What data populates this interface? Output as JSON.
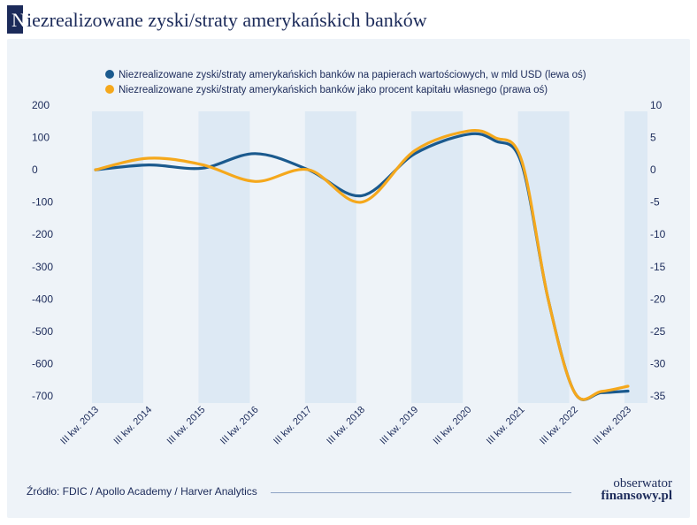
{
  "header": {
    "title_first": "N",
    "title_rest": "iezrealizowane zyski/straty amerykańskich banków"
  },
  "footer": {
    "source": "Źródło: FDIC / Apollo Academy / Harver Analytics",
    "brand_top": "obserwator",
    "brand_bottom": "finansowy.pl"
  },
  "colors": {
    "series_left": "#1b5a8e",
    "series_right": "#f5a81c",
    "band": "#dde9f4",
    "background": "#eef3f8",
    "text": "#1c2b5a"
  },
  "chart_data": {
    "type": "line",
    "title": "Niezrealizowane zyski/straty amerykańskich banków",
    "categories": [
      "III kw. 2013",
      "III kw. 2014",
      "III kw. 2015",
      "III kw. 2016",
      "III kw. 2017",
      "III kw. 2018",
      "III kw. 2019",
      "III kw. 2020",
      "III kw. 2021",
      "III kw. 2022",
      "III kw. 2023"
    ],
    "y_left": {
      "ylim": [
        -700,
        200
      ],
      "ticks": [
        200,
        100,
        0,
        -100,
        -200,
        -300,
        -400,
        -500,
        -600,
        -700
      ]
    },
    "y_right": {
      "ylim": [
        -35,
        10
      ],
      "ticks": [
        10,
        5,
        0,
        -5,
        -10,
        -15,
        -20,
        -25,
        -30,
        -35
      ]
    },
    "series": [
      {
        "name": "Niezrealizowane zyski/straty amerykańskich banków na papierach wartościowych, w mld USD (lewa oś)",
        "axis": "left",
        "color": "#1b5a8e",
        "x": [
          0,
          1,
          2,
          3,
          4,
          5,
          6,
          7,
          7.5,
          8,
          8.5,
          9,
          9.5,
          10
        ],
        "values": [
          0,
          15,
          5,
          50,
          0,
          -80,
          50,
          110,
          90,
          20,
          -400,
          -690,
          -690,
          -685
        ]
      },
      {
        "name": "Niezrealizowane zyski/straty amerykańskich banków jako procent kapitału własnego (prawa oś)",
        "axis": "right",
        "color": "#f5a81c",
        "x": [
          0,
          1,
          2,
          3,
          4,
          5,
          6,
          7,
          7.5,
          8,
          8.5,
          9,
          9.5,
          10
        ],
        "values": [
          0,
          1.8,
          0.8,
          -1.8,
          0,
          -5,
          3,
          6,
          5,
          1.5,
          -20,
          -34.5,
          -34.3,
          -33.5
        ]
      }
    ],
    "grid": false,
    "legend": "top-center",
    "shaded_bands": [
      "III kw. 2013",
      "III kw. 2015",
      "III kw. 2017",
      "III kw. 2019",
      "III kw. 2021",
      "III kw. 2023"
    ]
  }
}
